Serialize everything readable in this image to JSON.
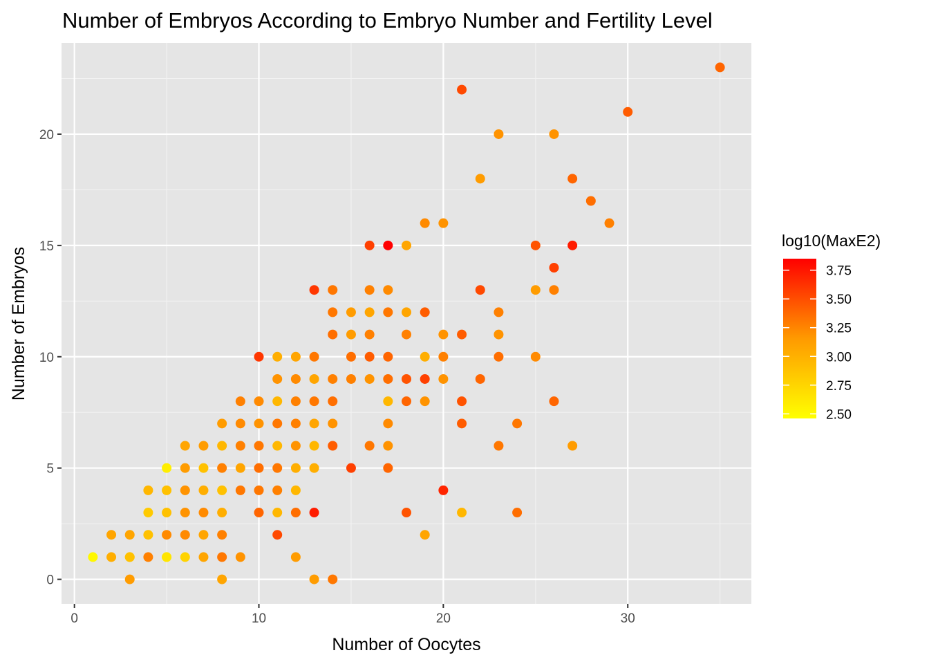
{
  "chart_data": {
    "type": "scatter",
    "title": "Number of Embryos According to Embryo Number and Fertility Level",
    "xlabel": "Number of Oocytes",
    "ylabel": "Number of Embryos",
    "xlim": [
      -0.7,
      36.7
    ],
    "ylim": [
      -1.1,
      24.1
    ],
    "x_ticks": [
      0,
      10,
      20,
      30
    ],
    "x_tick_labels": [
      "0",
      "10",
      "20",
      "30"
    ],
    "y_ticks": [
      0,
      5,
      10,
      15,
      20
    ],
    "y_tick_labels": [
      "0",
      "5",
      "10",
      "15",
      "20"
    ],
    "grid": true,
    "background": "#e5e5e5",
    "gridline_color": "#ffffff",
    "color_scale": {
      "title": "log10(MaxE2)",
      "low_color": "#ffff00",
      "high_color": "#ff0000",
      "min": 2.46,
      "max": 3.85,
      "ticks": [
        3.75,
        3.5,
        3.25,
        3.0,
        2.75,
        2.5
      ],
      "tick_labels": [
        "3.75",
        "3.50",
        "3.25",
        "3.00",
        "2.75",
        "2.50"
      ],
      "placement": "right"
    },
    "points": [
      [
        1,
        1,
        2.5
      ],
      [
        2,
        1,
        2.9
      ],
      [
        2,
        2,
        2.95
      ],
      [
        3,
        0,
        3.0
      ],
      [
        3,
        1,
        2.7
      ],
      [
        3,
        1,
        2.8
      ],
      [
        3,
        2,
        2.95
      ],
      [
        4,
        1,
        3.15
      ],
      [
        4,
        2,
        2.8
      ],
      [
        4,
        3,
        2.75
      ],
      [
        4,
        4,
        2.85
      ],
      [
        5,
        1,
        2.5
      ],
      [
        5,
        1,
        2.6
      ],
      [
        5,
        2,
        3.1
      ],
      [
        5,
        3,
        2.8
      ],
      [
        5,
        4,
        2.8
      ],
      [
        5,
        5,
        2.55
      ],
      [
        6,
        1,
        2.7
      ],
      [
        6,
        2,
        3.1
      ],
      [
        6,
        3,
        3.05
      ],
      [
        6,
        4,
        3.05
      ],
      [
        6,
        5,
        3.0
      ],
      [
        6,
        6,
        2.95
      ],
      [
        7,
        1,
        2.95
      ],
      [
        7,
        2,
        2.95
      ],
      [
        7,
        3,
        3.1
      ],
      [
        7,
        4,
        2.9
      ],
      [
        7,
        5,
        2.8
      ],
      [
        7,
        6,
        3.0
      ],
      [
        8,
        0,
        2.95
      ],
      [
        8,
        1,
        3.2
      ],
      [
        8,
        2,
        3.15
      ],
      [
        8,
        3,
        2.9
      ],
      [
        8,
        4,
        2.8
      ],
      [
        8,
        5,
        3.15
      ],
      [
        8,
        6,
        2.85
      ],
      [
        8,
        7,
        3.0
      ],
      [
        9,
        1,
        3.05
      ],
      [
        9,
        4,
        3.2
      ],
      [
        9,
        5,
        2.95
      ],
      [
        9,
        6,
        3.15
      ],
      [
        9,
        7,
        3.1
      ],
      [
        9,
        8,
        3.15
      ],
      [
        10,
        3,
        3.3
      ],
      [
        10,
        4,
        3.2
      ],
      [
        10,
        5,
        3.25
      ],
      [
        10,
        6,
        3.2
      ],
      [
        10,
        7,
        3.05
      ],
      [
        10,
        8,
        3.1
      ],
      [
        10,
        10,
        3.55
      ],
      [
        11,
        2,
        3.45
      ],
      [
        11,
        3,
        2.85
      ],
      [
        11,
        4,
        3.15
      ],
      [
        11,
        5,
        3.2
      ],
      [
        11,
        6,
        2.85
      ],
      [
        11,
        7,
        3.2
      ],
      [
        11,
        8,
        2.85
      ],
      [
        11,
        9,
        3.05
      ],
      [
        11,
        10,
        2.9
      ],
      [
        12,
        1,
        3.0
      ],
      [
        12,
        3,
        3.25
      ],
      [
        12,
        4,
        2.85
      ],
      [
        12,
        5,
        2.9
      ],
      [
        12,
        6,
        3.05
      ],
      [
        12,
        7,
        3.15
      ],
      [
        12,
        8,
        3.15
      ],
      [
        12,
        9,
        3.1
      ],
      [
        12,
        10,
        2.95
      ],
      [
        13,
        0,
        3.0
      ],
      [
        13,
        3,
        3.7
      ],
      [
        13,
        5,
        2.9
      ],
      [
        13,
        6,
        2.85
      ],
      [
        13,
        7,
        2.95
      ],
      [
        13,
        8,
        3.2
      ],
      [
        13,
        9,
        2.95
      ],
      [
        13,
        10,
        3.2
      ],
      [
        13,
        13,
        3.55
      ],
      [
        14,
        0,
        3.2
      ],
      [
        14,
        6,
        3.35
      ],
      [
        14,
        7,
        3.05
      ],
      [
        14,
        8,
        3.25
      ],
      [
        14,
        9,
        3.15
      ],
      [
        14,
        11,
        3.25
      ],
      [
        14,
        12,
        3.2
      ],
      [
        14,
        13,
        3.2
      ],
      [
        15,
        5,
        3.5
      ],
      [
        15,
        9,
        3.15
      ],
      [
        15,
        10,
        3.25
      ],
      [
        15,
        11,
        3.0
      ],
      [
        15,
        12,
        3.0
      ],
      [
        16,
        6,
        3.2
      ],
      [
        16,
        9,
        3.05
      ],
      [
        16,
        10,
        3.35
      ],
      [
        16,
        11,
        3.15
      ],
      [
        16,
        12,
        2.95
      ],
      [
        16,
        13,
        3.15
      ],
      [
        16,
        15,
        3.5
      ],
      [
        17,
        5,
        3.3
      ],
      [
        17,
        6,
        3.05
      ],
      [
        17,
        7,
        3.1
      ],
      [
        17,
        8,
        2.85
      ],
      [
        17,
        9,
        3.25
      ],
      [
        17,
        10,
        3.3
      ],
      [
        17,
        12,
        3.2
      ],
      [
        17,
        13,
        3.1
      ],
      [
        17,
        15,
        3.85
      ],
      [
        18,
        3,
        3.4
      ],
      [
        18,
        8,
        3.3
      ],
      [
        18,
        9,
        3.4
      ],
      [
        18,
        11,
        3.15
      ],
      [
        18,
        12,
        2.95
      ],
      [
        18,
        15,
        2.95
      ],
      [
        19,
        2,
        2.95
      ],
      [
        19,
        8,
        3.05
      ],
      [
        19,
        9,
        3.5
      ],
      [
        19,
        10,
        2.9
      ],
      [
        19,
        12,
        3.35
      ],
      [
        19,
        16,
        3.1
      ],
      [
        20,
        4,
        3.65
      ],
      [
        20,
        9,
        3.05
      ],
      [
        20,
        10,
        3.15
      ],
      [
        20,
        11,
        3.05
      ],
      [
        20,
        16,
        3.05
      ],
      [
        21,
        3,
        2.85
      ],
      [
        21,
        7,
        3.35
      ],
      [
        21,
        8,
        3.4
      ],
      [
        21,
        11,
        3.35
      ],
      [
        21,
        22,
        3.45
      ],
      [
        22,
        9,
        3.3
      ],
      [
        22,
        13,
        3.45
      ],
      [
        22,
        18,
        3.0
      ],
      [
        23,
        6,
        3.2
      ],
      [
        23,
        10,
        3.25
      ],
      [
        23,
        11,
        3.05
      ],
      [
        23,
        12,
        3.15
      ],
      [
        23,
        20,
        3.05
      ],
      [
        24,
        3,
        3.25
      ],
      [
        24,
        7,
        3.2
      ],
      [
        25,
        10,
        3.1
      ],
      [
        25,
        13,
        3.0
      ],
      [
        25,
        15,
        3.4
      ],
      [
        26,
        8,
        3.3
      ],
      [
        26,
        13,
        3.15
      ],
      [
        26,
        14,
        3.5
      ],
      [
        26,
        20,
        3.05
      ],
      [
        27,
        6,
        3.0
      ],
      [
        27,
        15,
        3.7
      ],
      [
        27,
        18,
        3.3
      ],
      [
        28,
        17,
        3.25
      ],
      [
        29,
        16,
        3.15
      ],
      [
        30,
        21,
        3.35
      ],
      [
        35,
        23,
        3.3
      ]
    ]
  }
}
